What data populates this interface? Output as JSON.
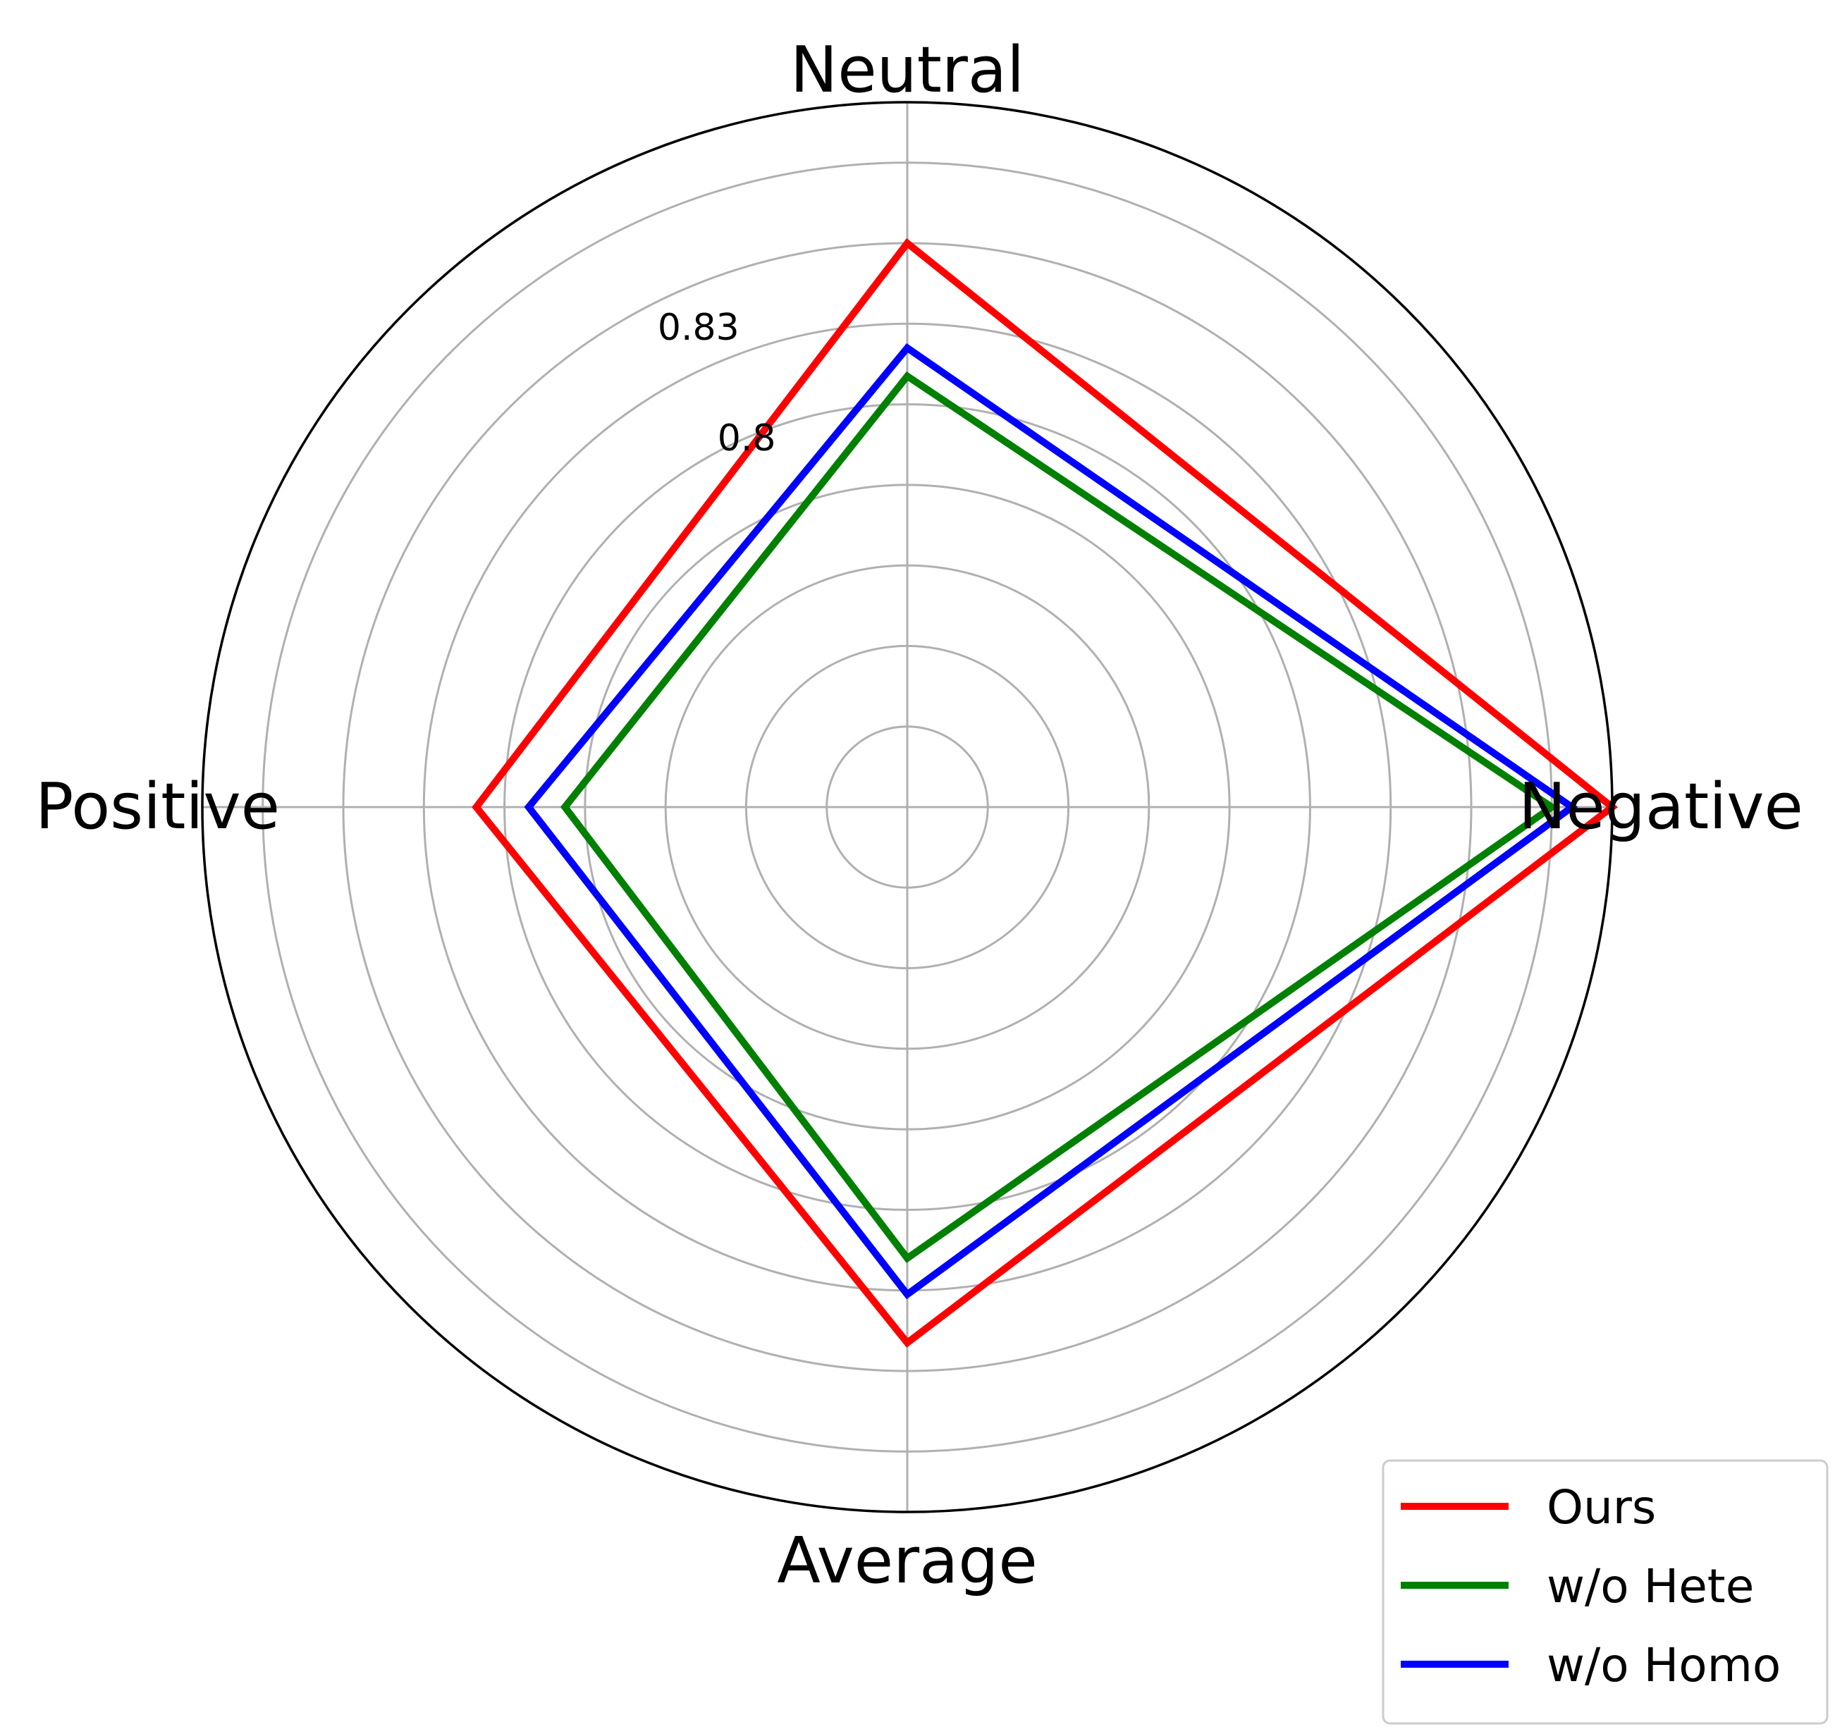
{
  "chart_data": {
    "type": "radar",
    "axes": [
      "Neutral",
      "Negative",
      "Average",
      "Positive"
    ],
    "radial_ticks": [
      0.8,
      0.83
    ],
    "radial_tick_labels": [
      "0.8",
      "0.83"
    ],
    "rlim": [
      0.7,
      0.875
    ],
    "grid": true,
    "legend_position": "bottom-right",
    "series": [
      {
        "name": "Ours",
        "color": "#ff0000",
        "values": [
          0.84,
          0.875,
          0.833,
          0.807
        ]
      },
      {
        "name": "w/o Hete",
        "color": "#008000",
        "values": [
          0.807,
          0.86,
          0.812,
          0.785
        ]
      },
      {
        "name": "w/o Homo",
        "color": "#0000ff",
        "values": [
          0.814,
          0.865,
          0.821,
          0.794
        ]
      }
    ]
  }
}
